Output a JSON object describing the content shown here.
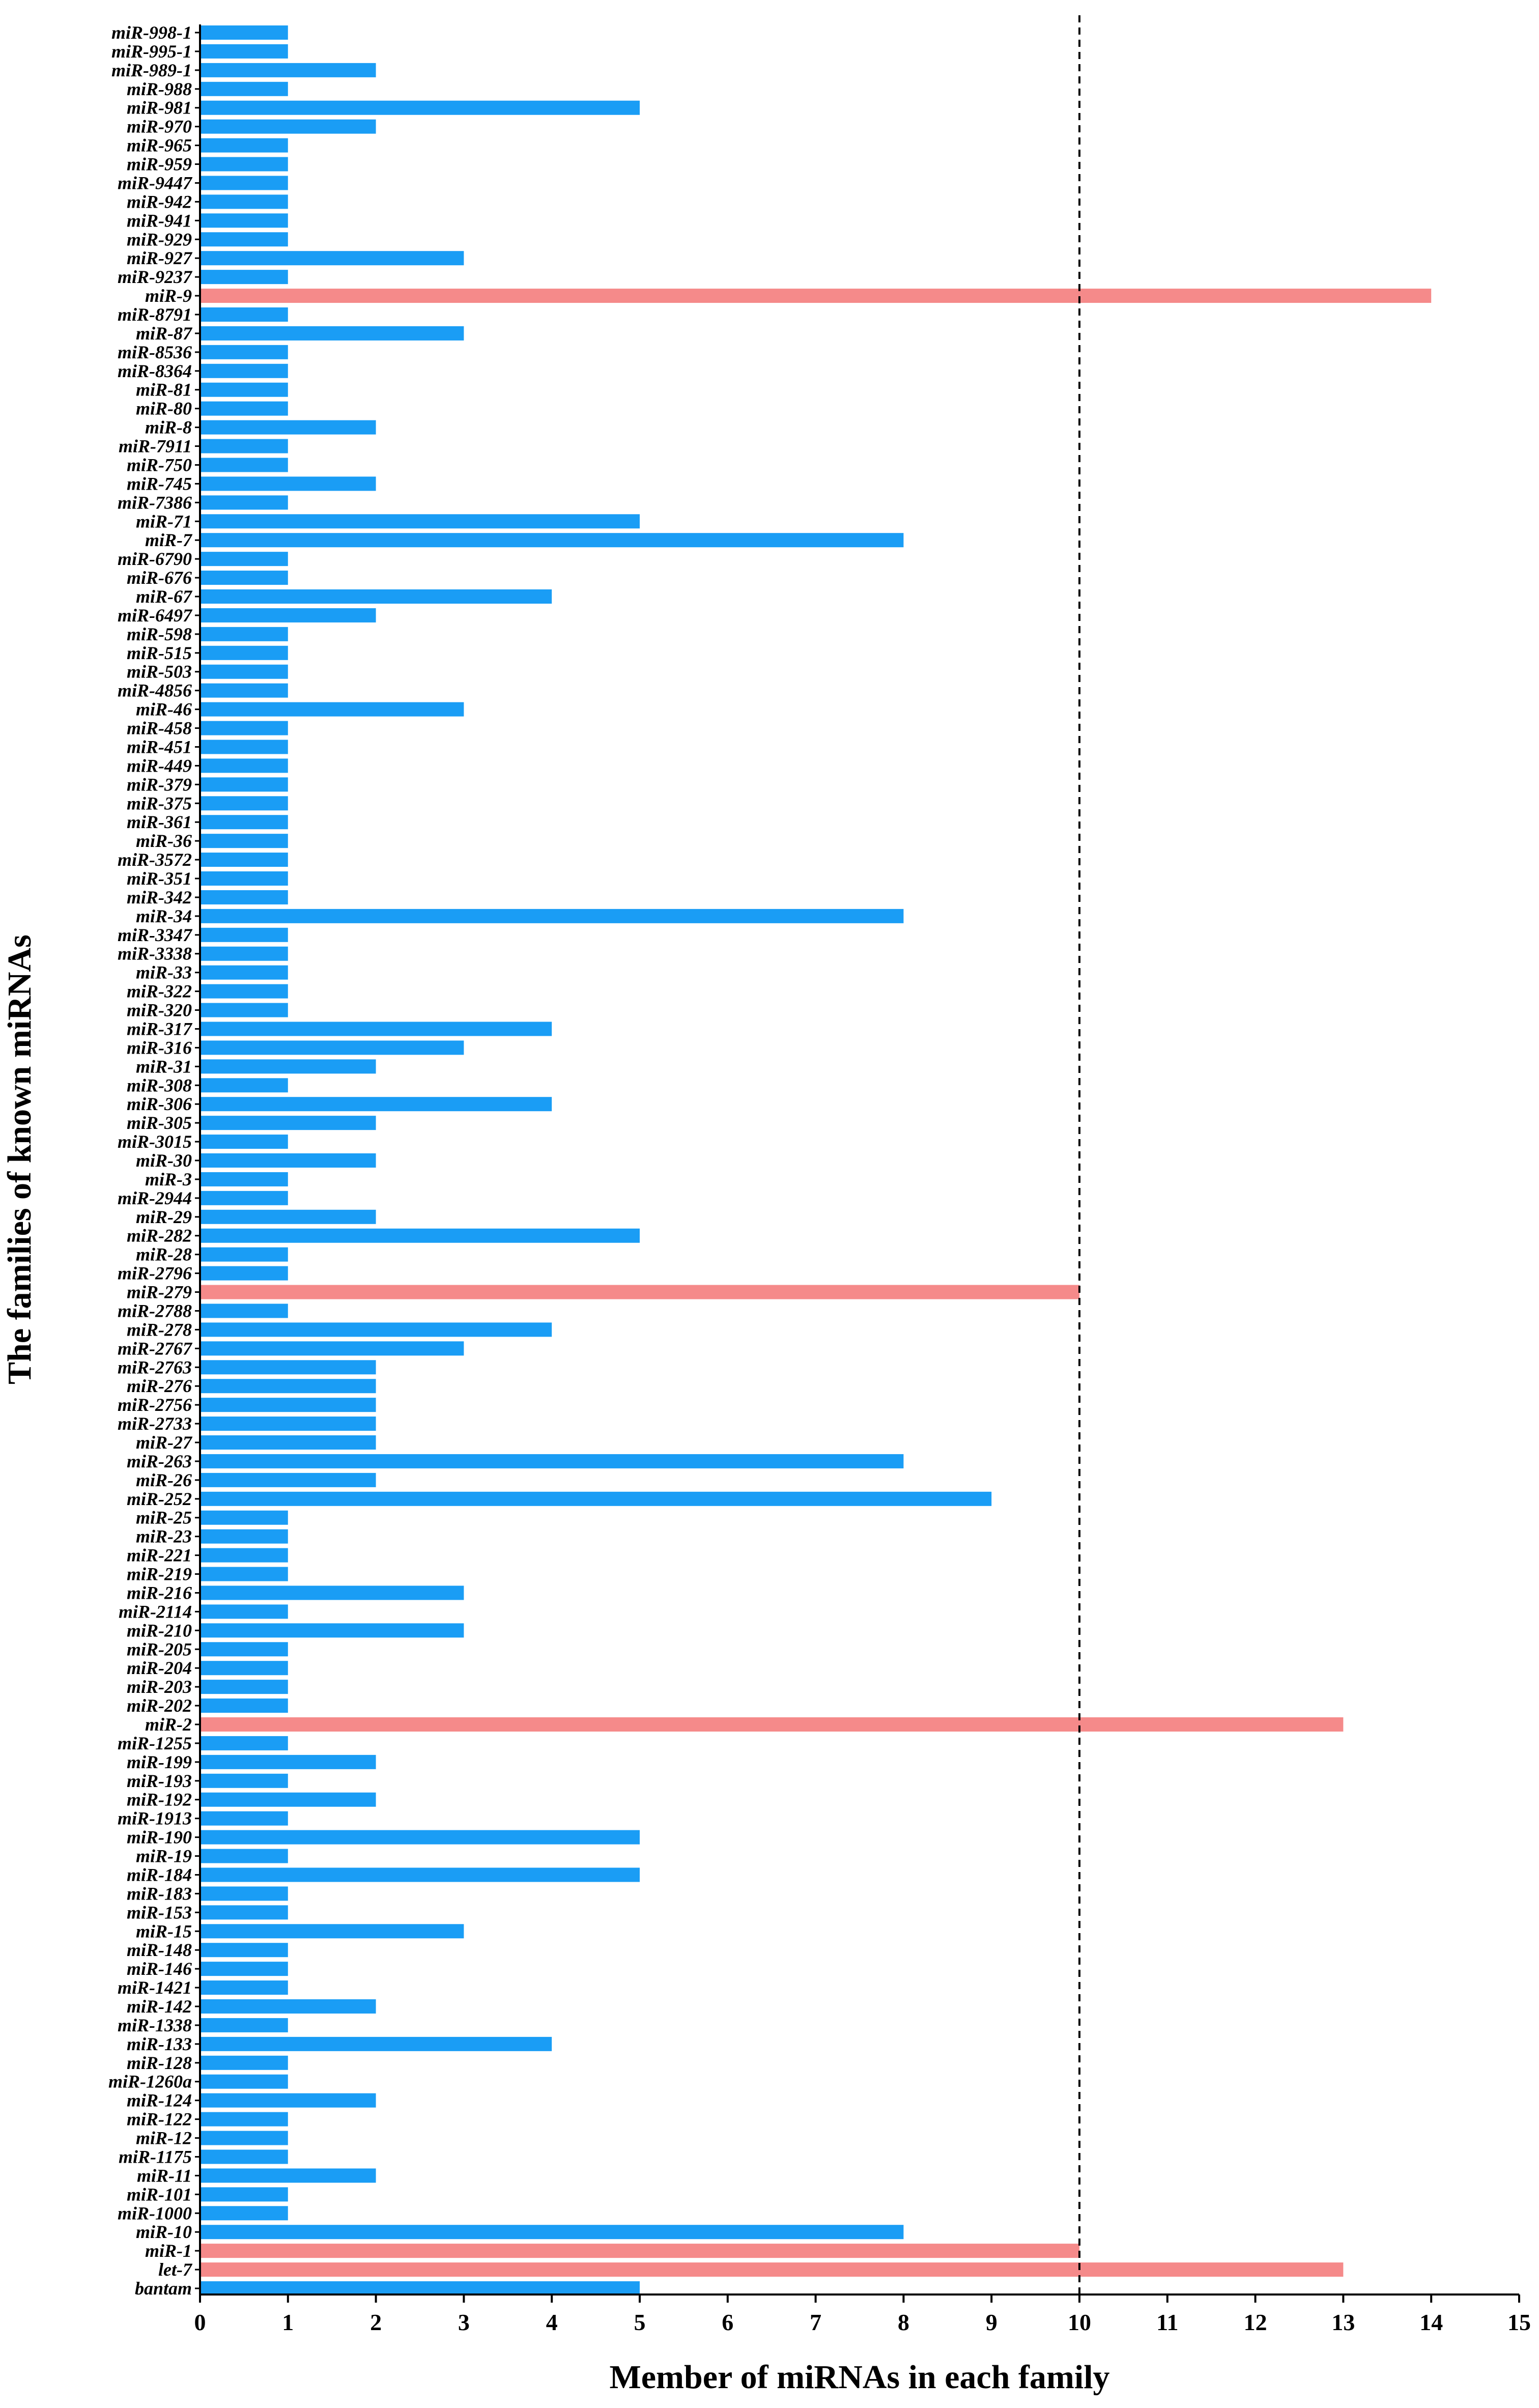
{
  "colors": {
    "normal_bar": "#1a9df5",
    "highlight_bar": "#f58a8a",
    "axis": "#000000",
    "reference_line": "#000000"
  },
  "chart_data": {
    "type": "bar",
    "orientation": "horizontal",
    "xlabel": "Member of miRNAs in each family",
    "ylabel": "The families of known miRNAs",
    "xlim": [
      0,
      15
    ],
    "xticks": [
      0,
      1,
      2,
      3,
      4,
      5,
      6,
      7,
      8,
      9,
      10,
      11,
      12,
      13,
      14,
      15
    ],
    "reference_line": {
      "x": 10,
      "style": "dashed"
    },
    "highlight_rule": "families with at least 10 members are highlighted",
    "grid": false,
    "categories": [
      "miR-998-1",
      "miR-995-1",
      "miR-989-1",
      "miR-988",
      "miR-981",
      "miR-970",
      "miR-965",
      "miR-959",
      "miR-9447",
      "miR-942",
      "miR-941",
      "miR-929",
      "miR-927",
      "miR-9237",
      "miR-9",
      "miR-8791",
      "miR-87",
      "miR-8536",
      "miR-8364",
      "miR-81",
      "miR-80",
      "miR-8",
      "miR-7911",
      "miR-750",
      "miR-745",
      "miR-7386",
      "miR-71",
      "miR-7",
      "miR-6790",
      "miR-676",
      "miR-67",
      "miR-6497",
      "miR-598",
      "miR-515",
      "miR-503",
      "miR-4856",
      "miR-46",
      "miR-458",
      "miR-451",
      "miR-449",
      "miR-379",
      "miR-375",
      "miR-361",
      "miR-36",
      "miR-3572",
      "miR-351",
      "miR-342",
      "miR-34",
      "miR-3347",
      "miR-3338",
      "miR-33",
      "miR-322",
      "miR-320",
      "miR-317",
      "miR-316",
      "miR-31",
      "miR-308",
      "miR-306",
      "miR-305",
      "miR-3015",
      "miR-30",
      "miR-3",
      "miR-2944",
      "miR-29",
      "miR-282",
      "miR-28",
      "miR-2796",
      "miR-279",
      "miR-2788",
      "miR-278",
      "miR-2767",
      "miR-2763",
      "miR-276",
      "miR-2756",
      "miR-2733",
      "miR-27",
      "miR-263",
      "miR-26",
      "miR-252",
      "miR-25",
      "miR-23",
      "miR-221",
      "miR-219",
      "miR-216",
      "miR-2114",
      "miR-210",
      "miR-205",
      "miR-204",
      "miR-203",
      "miR-202",
      "miR-2",
      "miR-1255",
      "miR-199",
      "miR-193",
      "miR-192",
      "miR-1913",
      "miR-190",
      "miR-19",
      "miR-184",
      "miR-183",
      "miR-153",
      "miR-15",
      "miR-148",
      "miR-146",
      "miR-1421",
      "miR-142",
      "miR-1338",
      "miR-133",
      "miR-128",
      "miR-1260a",
      "miR-124",
      "miR-122",
      "miR-12",
      "miR-1175",
      "miR-11",
      "miR-101",
      "miR-1000",
      "miR-10",
      "miR-1",
      "let-7",
      "bantam"
    ],
    "values": [
      1,
      1,
      2,
      1,
      5,
      2,
      1,
      1,
      1,
      1,
      1,
      1,
      3,
      1,
      14,
      1,
      3,
      1,
      1,
      1,
      1,
      2,
      1,
      1,
      2,
      1,
      5,
      8,
      1,
      1,
      4,
      2,
      1,
      1,
      1,
      1,
      3,
      1,
      1,
      1,
      1,
      1,
      1,
      1,
      1,
      1,
      1,
      8,
      1,
      1,
      1,
      1,
      1,
      4,
      3,
      2,
      1,
      4,
      2,
      1,
      2,
      1,
      1,
      2,
      5,
      1,
      1,
      10,
      1,
      4,
      3,
      2,
      2,
      2,
      2,
      2,
      8,
      2,
      9,
      1,
      1,
      1,
      1,
      3,
      1,
      3,
      1,
      1,
      1,
      1,
      13,
      1,
      2,
      1,
      2,
      1,
      5,
      1,
      5,
      1,
      1,
      3,
      1,
      1,
      1,
      2,
      1,
      4,
      1,
      1,
      2,
      1,
      1,
      1,
      2,
      1,
      1,
      8,
      10,
      13,
      5
    ]
  }
}
